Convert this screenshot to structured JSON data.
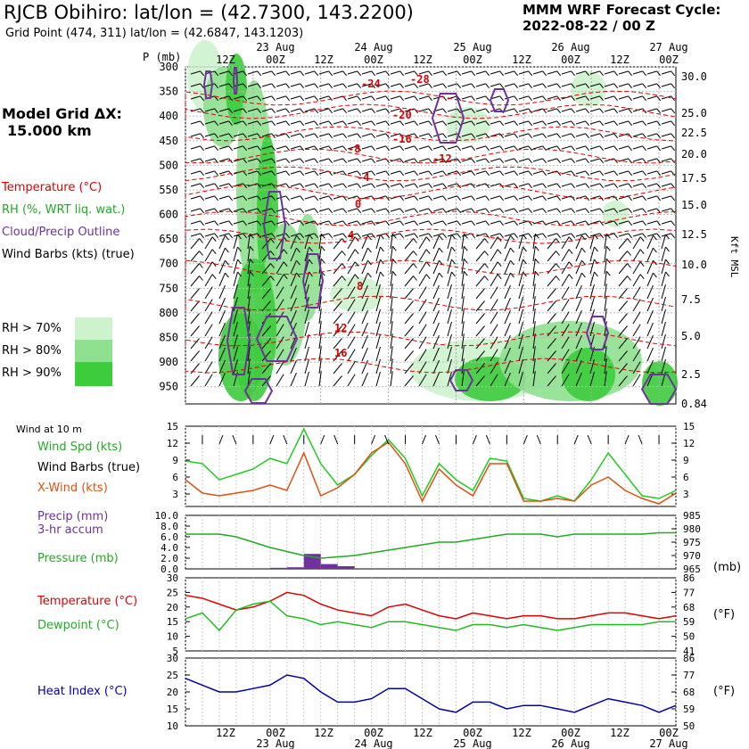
{
  "header": {
    "title": "RJCB Obihiro:  lat/lon = (42.7300, 143.2200)",
    "subtitle": "Grid Point (474, 311) lat/lon = (42.6847, 143.1203)",
    "cycle_label": "MMM WRF Forecast Cycle:",
    "cycle_value": "2022-08-22 / 00  Z"
  },
  "left_panel": {
    "grid_label": "Model Grid ΔX:",
    "grid_value": "15.000 km",
    "legend_temperature": "Temperature (°C)",
    "legend_rh": "RH (%, WRT liq. wat.)",
    "legend_cloud": "Cloud/Precip Outline",
    "legend_barbs": "Wind Barbs (kts) (true)",
    "rh_70": "RH > 70%",
    "rh_80": "RH > 80%",
    "rh_90": "RH > 90%",
    "wind_at": "Wind at 10 m",
    "wind_spd": "Wind Spd (kts)",
    "wind_barbs": "Wind Barbs (true)",
    "xwind": "X-Wind (kts)",
    "precip1": "Precip (mm)",
    "precip2": "3-hr accum",
    "pressure": "Pressure (mb)",
    "temperature": "Temperature (°C)",
    "dewpoint": "Dewpoint (°C)",
    "heat_index": "Heat Index (°C)"
  },
  "colors": {
    "temperature": "#dd0000",
    "rh": "#22aa22",
    "cloud": "#7030a0",
    "dewpoint": "#22bb22",
    "xwind": "#e05010",
    "heat_index": "#0000aa",
    "rh70": "#cdf3cd",
    "rh80": "#8fe08f",
    "rh90": "#3ccc3c"
  },
  "time_axis": {
    "top_hour_labels": [
      "12Z",
      "00Z",
      "12Z",
      "00Z",
      "12Z",
      "00Z",
      "12Z",
      "00Z",
      "12Z",
      "00Z"
    ],
    "bottom_hour_labels": [
      "12Z",
      "00Z",
      "12Z",
      "00Z",
      "12Z",
      "00Z",
      "12Z",
      "00Z",
      "12Z",
      "00Z"
    ],
    "day_labels": [
      "23 Aug",
      "24 Aug",
      "25 Aug",
      "26 Aug",
      "27 Aug"
    ]
  },
  "chart_data": [
    {
      "type": "heatmap",
      "ylabel": "P (mb)",
      "y2label": "Kft MSL",
      "pressure_ticks": [
        300,
        350,
        400,
        450,
        500,
        550,
        600,
        650,
        700,
        750,
        800,
        850,
        900,
        950
      ],
      "height_ticks": [
        "30.0",
        "25.0",
        "22.5",
        "20.0",
        "17.5",
        "15.0",
        "12.5",
        "10.0",
        "7.5",
        "5.0",
        "2.5",
        "0.84"
      ],
      "temperature_contour_labels": [
        "-24",
        "-28",
        "-20",
        "-16",
        "-12",
        "-8",
        "-4",
        "0",
        "4",
        "8",
        "12",
        "16"
      ]
    },
    {
      "type": "line",
      "left_ticks": [
        "15",
        "12",
        "9",
        "6",
        "3"
      ],
      "right_ticks": [
        "15",
        "12",
        "9",
        "6",
        "3"
      ],
      "series": [
        {
          "name": "Wind Spd (kts)",
          "values": [
            8.5,
            8,
            5,
            6,
            7,
            9,
            8,
            14.5,
            8,
            4,
            6,
            9.5,
            12.5,
            9,
            2,
            8,
            5,
            3,
            9,
            8.5,
            1.5,
            1,
            2,
            1,
            5,
            10,
            6,
            2,
            1.5,
            3
          ]
        },
        {
          "name": "X-Wind (kts)",
          "values": [
            5,
            2.5,
            2,
            2.5,
            3,
            4,
            3,
            10,
            2,
            3.5,
            6,
            10,
            12,
            8,
            1,
            7,
            4,
            2,
            8,
            8,
            1,
            1,
            1.5,
            1,
            4,
            5.5,
            3,
            1.5,
            0.5,
            2.5
          ]
        }
      ]
    },
    {
      "type": "bar",
      "left_ticks": [
        "10.0",
        "8.0",
        "6.0",
        "4.0",
        "2.0",
        "0.0"
      ],
      "right_ticks": [
        "985",
        "980",
        "975",
        "970",
        "965"
      ],
      "precip_values": [
        0,
        0,
        0,
        0,
        0,
        0.2,
        0.3,
        2.8,
        0.9,
        0.5,
        0,
        0,
        0,
        0,
        0,
        0,
        0,
        0,
        0,
        0,
        0,
        0,
        0,
        0,
        0,
        0,
        0,
        0,
        0,
        0
      ],
      "pressure_values": [
        978,
        978,
        978,
        977,
        975,
        973,
        971.5,
        970,
        969,
        969.5,
        970,
        971,
        972,
        973,
        974,
        975,
        975,
        976,
        977,
        978,
        978,
        978,
        977,
        978,
        978,
        978,
        978,
        978,
        978.5,
        978.5
      ]
    },
    {
      "type": "line",
      "left_ticks": [
        "30",
        "25",
        "20",
        "15",
        "10",
        "5"
      ],
      "right_ticks": [
        "86",
        "77",
        "68",
        "59",
        "50",
        "41"
      ],
      "series": [
        {
          "name": "Temperature (°C)",
          "values": [
            24,
            23,
            21,
            19,
            20,
            22,
            25,
            24,
            21,
            19,
            18,
            17,
            20,
            21,
            19,
            17,
            16,
            18,
            17,
            16,
            17,
            17,
            16,
            16,
            17,
            18,
            18,
            17,
            16,
            17
          ]
        },
        {
          "name": "Dewpoint (°C)",
          "values": [
            16,
            18,
            12,
            19,
            21,
            22,
            17,
            16,
            14,
            15,
            14,
            13,
            15,
            15,
            14,
            13,
            12,
            14,
            14,
            13,
            14,
            13,
            12,
            13,
            14,
            14,
            14,
            14,
            15,
            15
          ]
        }
      ]
    },
    {
      "type": "line",
      "left_ticks": [
        "30",
        "25",
        "20",
        "15",
        "10"
      ],
      "right_ticks": [
        "86",
        "77",
        "68",
        "59",
        "50"
      ],
      "series": [
        {
          "name": "Heat Index (°C)",
          "values": [
            24,
            22,
            20,
            20,
            21,
            22,
            25,
            24,
            20,
            17,
            17,
            18,
            21,
            21,
            18,
            15,
            14,
            17,
            17,
            15,
            16,
            16,
            15,
            14,
            16,
            18,
            17,
            16,
            14,
            16
          ]
        }
      ]
    }
  ]
}
